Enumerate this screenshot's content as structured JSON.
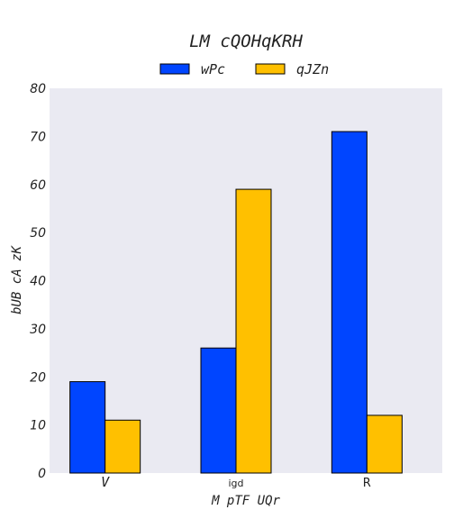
{
  "chart_data": {
    "type": "bar",
    "title": "LM cQOHqKRH",
    "xlabel": "M  pTF UQr",
    "ylabel": "bUB cA zK",
    "categories": [
      "V",
      "igd",
      "R"
    ],
    "series": [
      {
        "name": "wPc",
        "color": "#0045ff",
        "values": [
          19,
          26,
          71
        ]
      },
      {
        "name": "qJZn",
        "color": "#ffc000",
        "values": [
          11,
          59,
          12
        ]
      }
    ],
    "ylim": [
      0,
      80
    ],
    "yticks": [
      0,
      10,
      20,
      30,
      40,
      50,
      60,
      70,
      80
    ],
    "legend_position": "top-center",
    "plot_background": "#eaeaf2",
    "grid": false
  }
}
